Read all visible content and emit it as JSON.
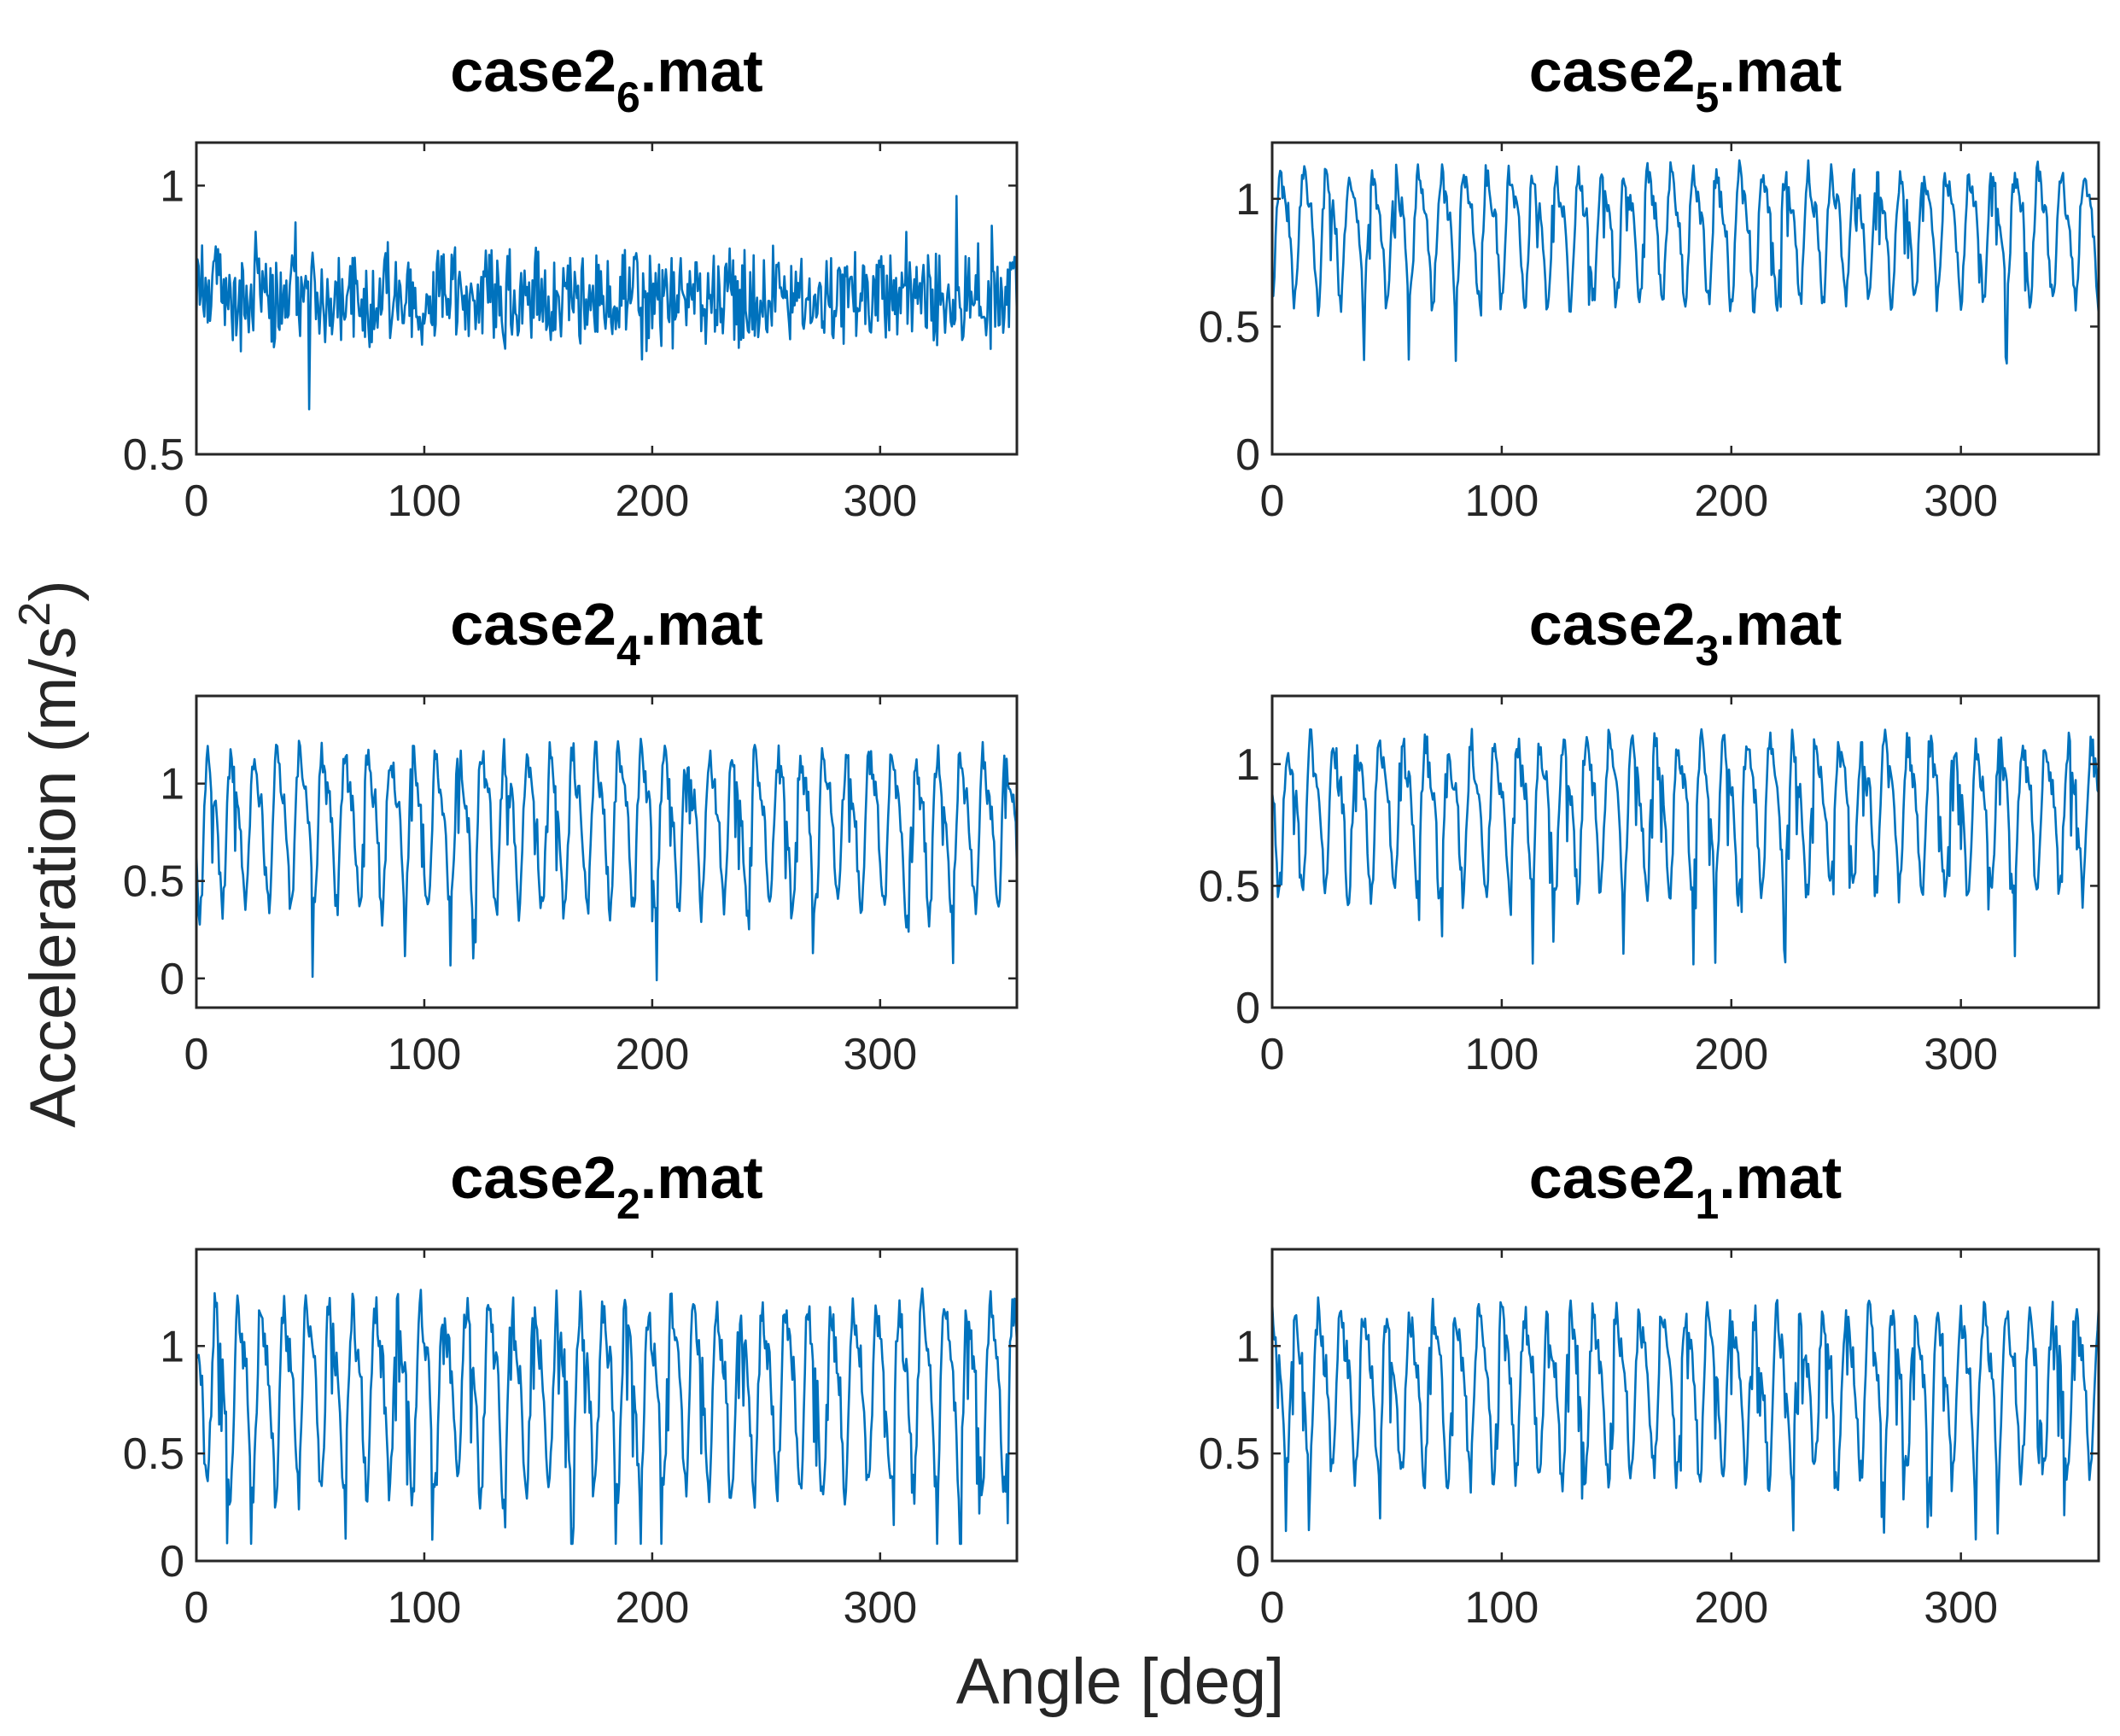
{
  "figure": {
    "xlabel": "Angle [deg]",
    "ylabel": {
      "main": "Acceleration (m/s",
      "sup": "2",
      "close": ")"
    },
    "line_color": "#0072BD",
    "axes_color": "#262626",
    "text_color": "#262626"
  },
  "chart_data": [
    {
      "type": "line",
      "title": {
        "base": "case2",
        "sub": "6",
        "ext": ".mat"
      },
      "xlim": [
        0,
        360
      ],
      "ylim": [
        0.5,
        1.08
      ],
      "xticks": [
        0,
        100,
        200,
        300
      ],
      "yticks": [
        0.5,
        1
      ],
      "series": [
        {
          "name": "case2_6",
          "pattern": {
            "kind": "noise",
            "center": 0.79,
            "amp": 0.07,
            "cycles": 0,
            "min": 0.5,
            "max": 1.08,
            "seed": 6
          }
        }
      ]
    },
    {
      "type": "line",
      "title": {
        "base": "case2",
        "sub": "5",
        "ext": ".mat"
      },
      "xlim": [
        0,
        360
      ],
      "ylim": [
        0,
        1.22
      ],
      "xticks": [
        0,
        100,
        200,
        300
      ],
      "yticks": [
        0,
        0.5,
        1
      ],
      "series": [
        {
          "name": "case2_5",
          "pattern": {
            "kind": "periodic",
            "center": 0.88,
            "amp": 0.22,
            "cycles": 36,
            "min": 0.1,
            "max": 1.22,
            "seed": 5
          }
        }
      ]
    },
    {
      "type": "line",
      "title": {
        "base": "case2",
        "sub": "4",
        "ext": ".mat"
      },
      "xlim": [
        0,
        360
      ],
      "ylim": [
        -0.15,
        1.45
      ],
      "xticks": [
        0,
        100,
        200,
        300
      ],
      "yticks": [
        0,
        0.5,
        1
      ],
      "series": [
        {
          "name": "case2_4",
          "pattern": {
            "kind": "periodic",
            "center": 0.8,
            "amp": 0.35,
            "cycles": 36,
            "min": -0.15,
            "max": 1.45,
            "seed": 4
          }
        }
      ]
    },
    {
      "type": "line",
      "title": {
        "base": "case2",
        "sub": "3",
        "ext": ".mat"
      },
      "xlim": [
        0,
        360
      ],
      "ylim": [
        0,
        1.28
      ],
      "xticks": [
        0,
        100,
        200,
        300
      ],
      "yticks": [
        0,
        0.5,
        1
      ],
      "series": [
        {
          "name": "case2_3",
          "pattern": {
            "kind": "periodic",
            "center": 0.82,
            "amp": 0.27,
            "cycles": 36,
            "min": 0.05,
            "max": 1.28,
            "seed": 3
          }
        }
      ]
    },
    {
      "type": "line",
      "title": {
        "base": "case2",
        "sub": "2",
        "ext": ".mat"
      },
      "xlim": [
        0,
        360
      ],
      "ylim": [
        0,
        1.45
      ],
      "xticks": [
        0,
        100,
        200,
        300
      ],
      "yticks": [
        0,
        0.5,
        1
      ],
      "series": [
        {
          "name": "case2_2",
          "pattern": {
            "kind": "periodic",
            "center": 0.8,
            "amp": 0.38,
            "cycles": 36,
            "min": 0.08,
            "max": 1.45,
            "seed": 2
          }
        }
      ]
    },
    {
      "type": "line",
      "title": {
        "base": "case2",
        "sub": "1",
        "ext": ".mat"
      },
      "xlim": [
        0,
        360
      ],
      "ylim": [
        0,
        1.45
      ],
      "xticks": [
        0,
        100,
        200,
        300
      ],
      "yticks": [
        0,
        0.5,
        1
      ],
      "series": [
        {
          "name": "case2_1",
          "pattern": {
            "kind": "periodic",
            "center": 0.82,
            "amp": 0.33,
            "cycles": 36,
            "min": 0.1,
            "max": 1.42,
            "seed": 1
          }
        }
      ]
    }
  ]
}
